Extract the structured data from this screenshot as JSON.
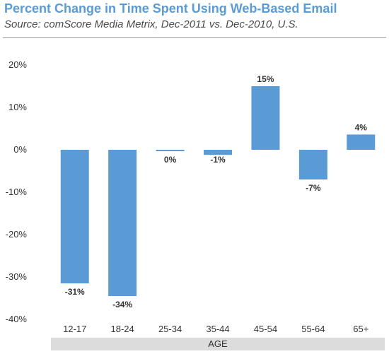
{
  "header": {
    "title": "Percent Change in Time Spent Using Web-Based Email",
    "subtitle": "Source: comScore Media Metrix, Dec-2011 vs. Dec-2010, U.S."
  },
  "chart_data": {
    "type": "bar",
    "title": "Percent Change in Time Spent Using Web-Based Email",
    "subtitle": "Source: comScore Media Metrix, Dec-2011 vs. Dec-2010, U.S.",
    "categories": [
      "12-17",
      "18-24",
      "25-34",
      "35-44",
      "45-54",
      "55-64",
      "65+"
    ],
    "values": [
      -31.5,
      -34.5,
      -0.3,
      -1.2,
      15,
      -7,
      3.6
    ],
    "data_labels": [
      "-31%",
      "-34%",
      "0%",
      "-1%",
      "15%",
      "-7%",
      "4%"
    ],
    "xlabel": "AGE",
    "ylabel": "",
    "ylim": [
      -40,
      20
    ],
    "yticks": [
      20,
      10,
      0,
      -10,
      -20,
      -30,
      -40
    ],
    "ytick_labels": [
      "20%",
      "10%",
      "0%",
      "-10%",
      "-20%",
      "-30%",
      "-40%"
    ],
    "bar_color": "#5b9bd5",
    "grid": false,
    "legend": "none"
  }
}
